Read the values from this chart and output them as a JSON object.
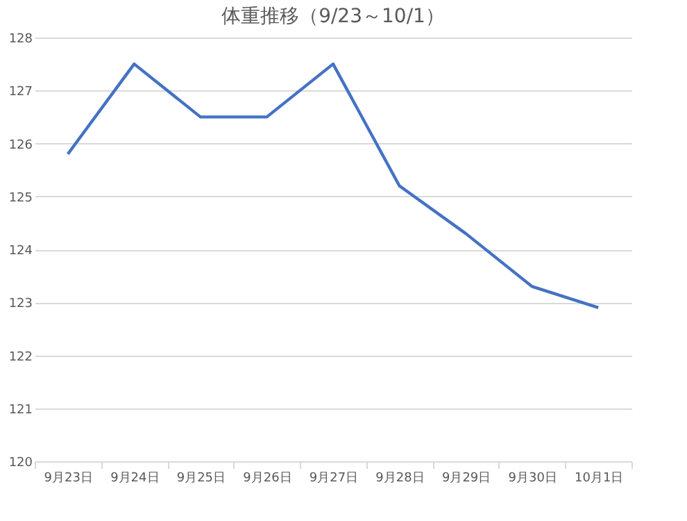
{
  "chart_data": {
    "type": "line",
    "title": "体重推移（9/23～10/1）",
    "categories": [
      "9月23日",
      "9月24日",
      "9月25日",
      "9月26日",
      "9月27日",
      "9月28日",
      "9月29日",
      "9月30日",
      "10月1日"
    ],
    "series": [
      {
        "color": "#4472c4",
        "values": [
          125.8,
          127.5,
          126.5,
          126.5,
          127.5,
          125.2,
          124.3,
          123.3,
          122.9
        ]
      }
    ],
    "ylim": [
      120,
      128
    ],
    "yticks": [
      120,
      121,
      122,
      123,
      124,
      125,
      126,
      127,
      128
    ],
    "grid": "y",
    "legend": false,
    "marker": "none",
    "line_style": "solid"
  }
}
